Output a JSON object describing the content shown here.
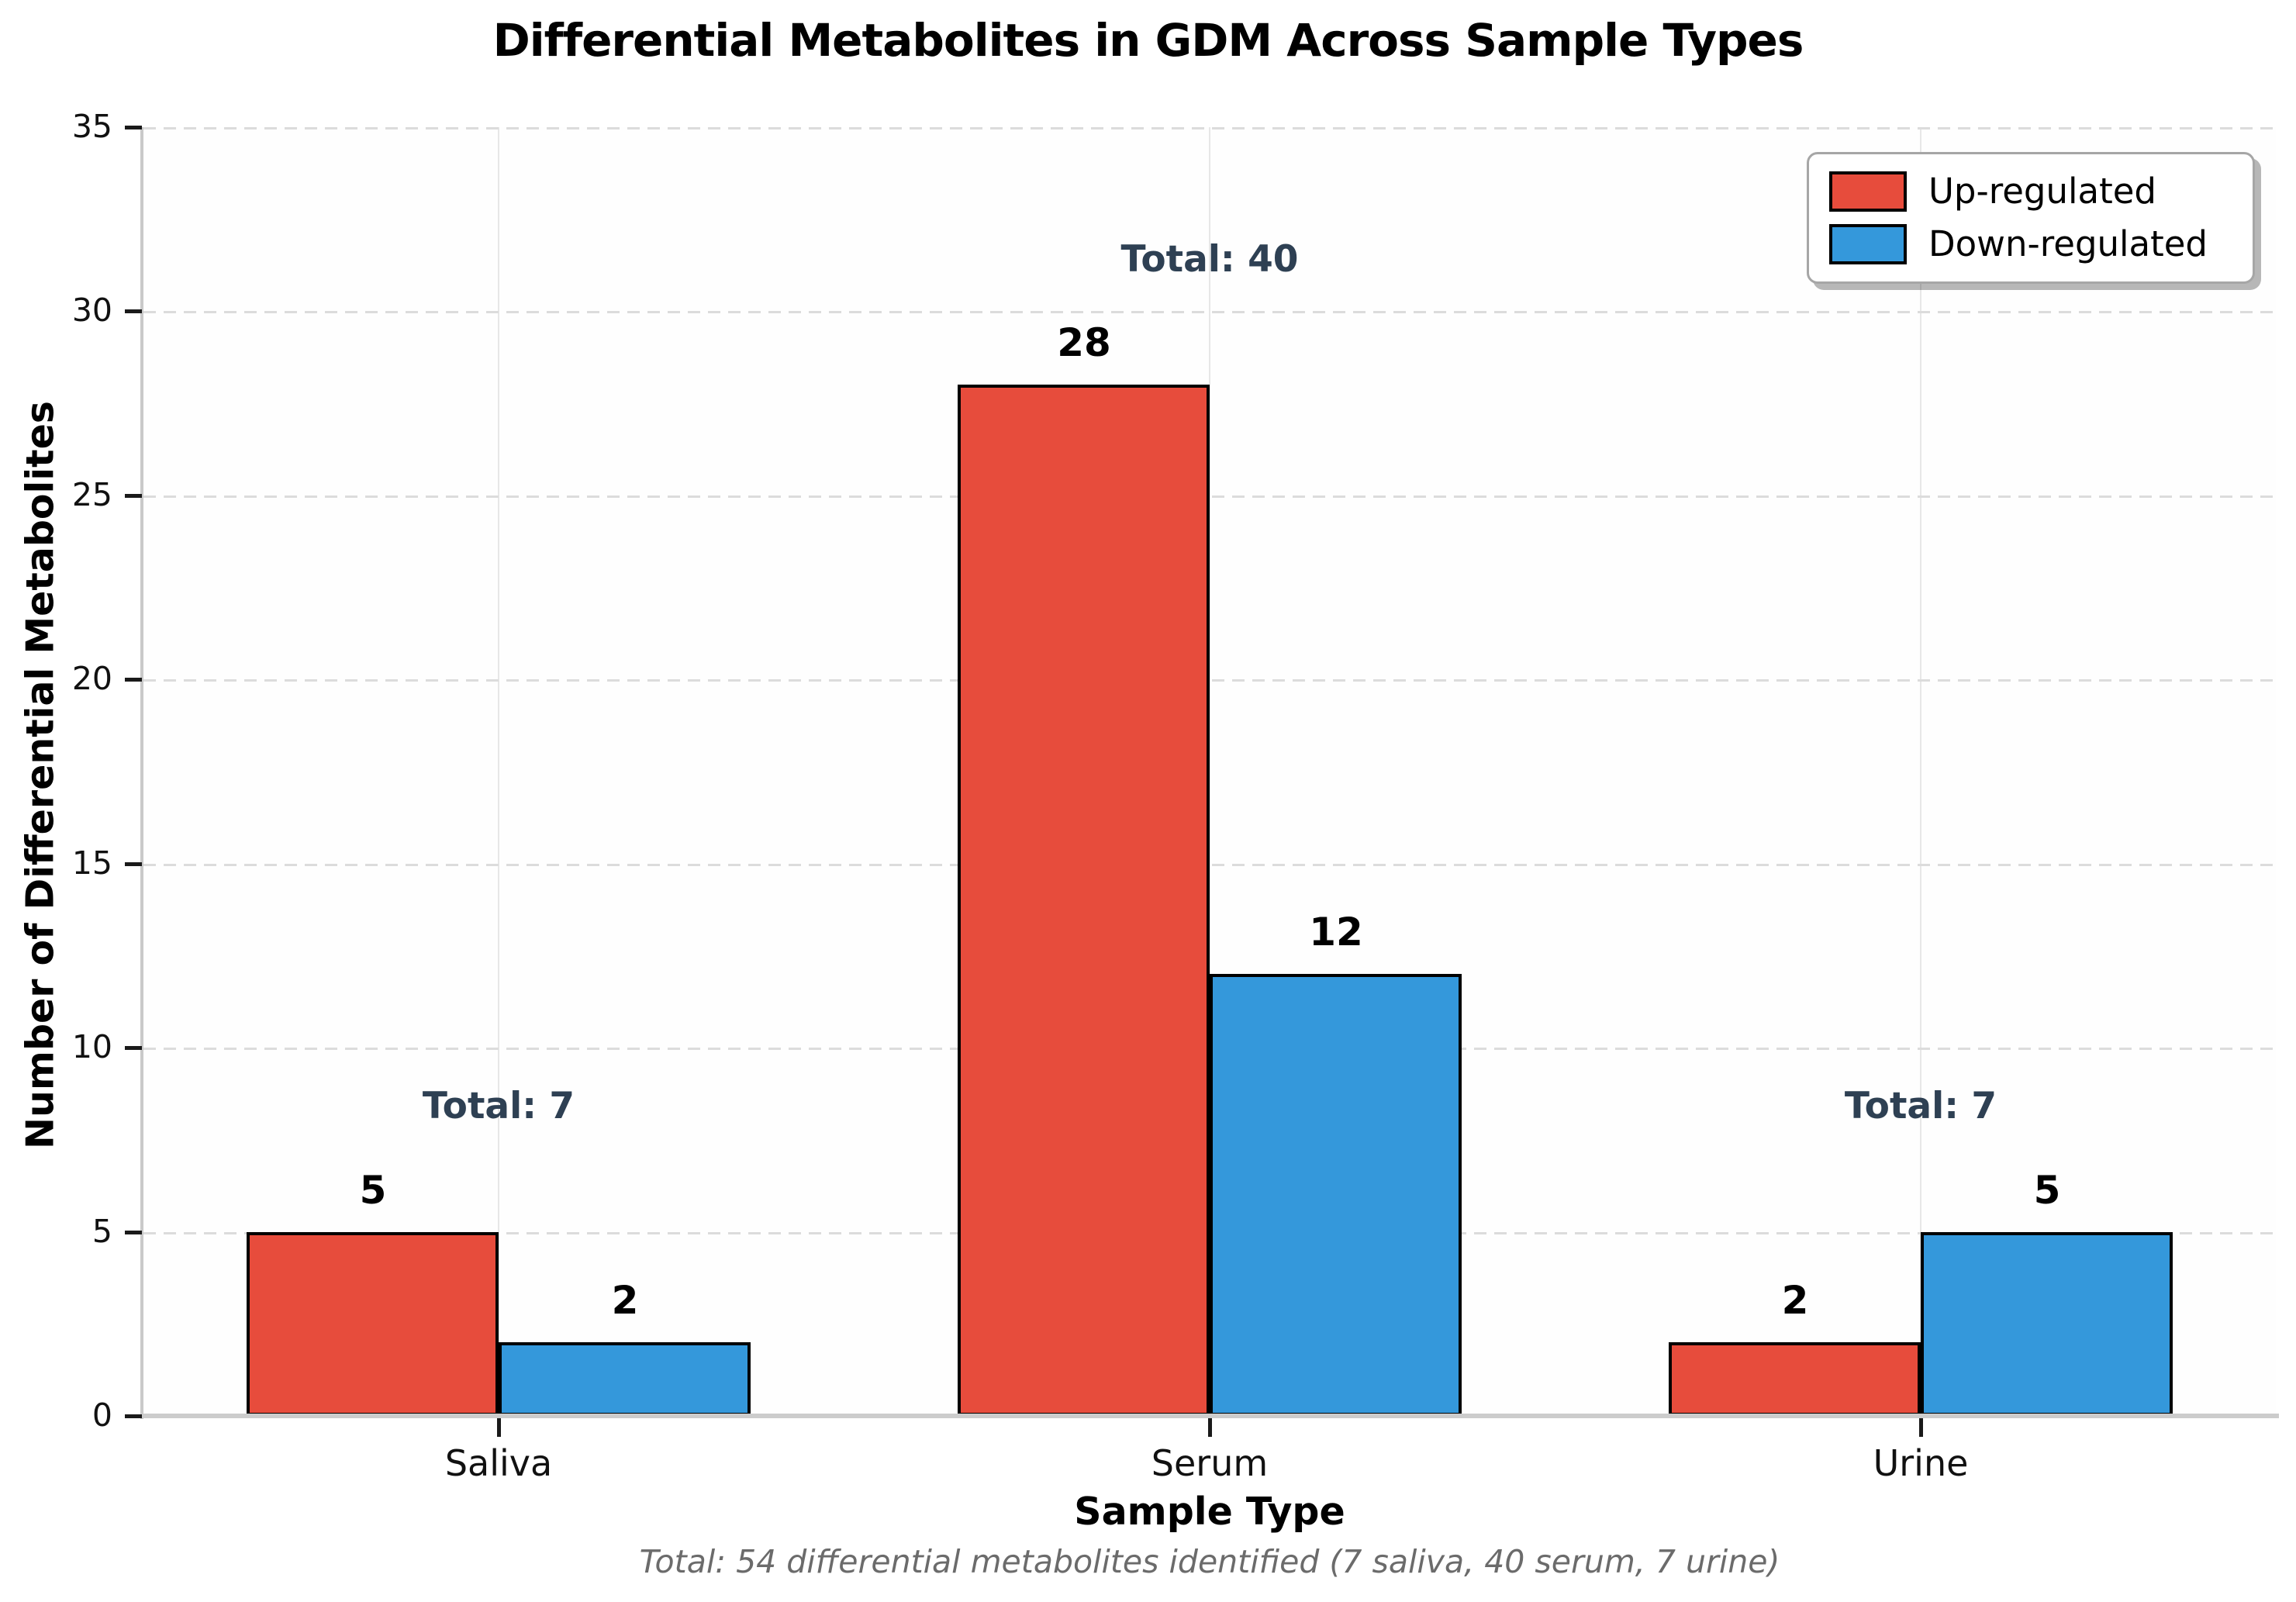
{
  "chart_data": {
    "type": "bar",
    "title": "Differential Metabolites in GDM Across Sample Types",
    "categories": [
      "Saliva",
      "Serum",
      "Urine"
    ],
    "series": [
      {
        "name": "Up-regulated",
        "color": "#e74c3c",
        "values": [
          5,
          28,
          2
        ]
      },
      {
        "name": "Down-regulated",
        "color": "#3498db",
        "values": [
          2,
          12,
          5
        ]
      }
    ],
    "bar_value_labels": [
      [
        "5",
        "28",
        "2"
      ],
      [
        "2",
        "12",
        "5"
      ]
    ],
    "group_totals": [
      7,
      40,
      7
    ],
    "group_total_labels": [
      "Total: 7",
      "Total: 40",
      "Total: 7"
    ],
    "xlabel": "Sample Type",
    "ylabel": "Number of Differential Metabolites",
    "ylim": [
      0,
      35
    ],
    "yticks": [
      0,
      5,
      10,
      15,
      20,
      25,
      30,
      35
    ],
    "grid": {
      "horizontal": "dashed",
      "vertical": "solid-faint"
    },
    "legend_position": "upper-right",
    "footnote": "Total: 54 differential metabolites identified (7 saliva, 40 serum, 7 urine)"
  },
  "colors": {
    "up_regulated": "#e74c3c",
    "down_regulated": "#3498db",
    "bar_edge": "#000000",
    "total_annotation": "#2e4053",
    "footnote_text": "#6b6b6b",
    "grid_line": "#dcdcdc",
    "axis_spine": "#c9c9c9"
  }
}
